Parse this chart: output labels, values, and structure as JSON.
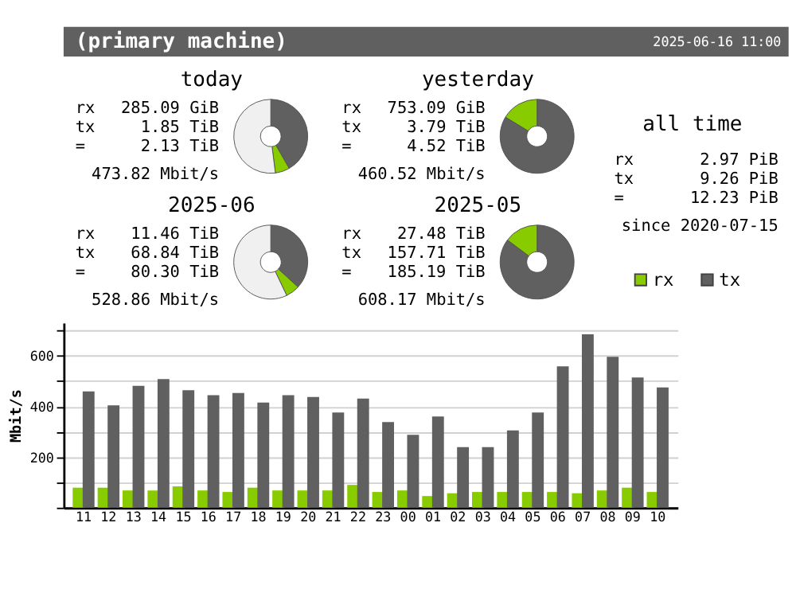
{
  "chart_data": [
    {
      "type": "other",
      "title": "(primary machine)",
      "annotations": [
        "2025-06-16 11:00"
      ]
    },
    {
      "type": "donut",
      "title": "today",
      "categories": [
        null,
        null,
        null
      ],
      "values": [
        41.7,
        6.3,
        52.0
      ],
      "colors": [
        "#606060",
        "#88cc00",
        "#f0f0f0"
      ],
      "annotations": [
        "rx",
        "285.09 GiB",
        "tx",
        "1.85 TiB",
        "=",
        "2.13 TiB",
        "473.82 Mbit/s"
      ]
    },
    {
      "type": "donut",
      "title": "yesterday",
      "categories": [
        null,
        null
      ],
      "values": [
        83.7,
        16.3
      ],
      "colors": [
        "#606060",
        "#88cc00"
      ],
      "annotations": [
        "rx",
        "753.09 GiB",
        "tx",
        "3.79 TiB",
        "=",
        "4.52 TiB",
        "460.52 Mbit/s"
      ]
    },
    {
      "type": "donut",
      "title": "2025-06",
      "categories": [
        null,
        null,
        null
      ],
      "values": [
        36.8,
        6.1,
        57.1
      ],
      "colors": [
        "#606060",
        "#88cc00",
        "#f0f0f0"
      ],
      "annotations": [
        "rx",
        "11.46 TiB",
        "tx",
        "68.84 TiB",
        "=",
        "80.30 TiB",
        "528.86 Mbit/s"
      ]
    },
    {
      "type": "donut",
      "title": "2025-05",
      "categories": [
        null,
        null
      ],
      "values": [
        85.2,
        14.8
      ],
      "colors": [
        "#606060",
        "#88cc00"
      ],
      "annotations": [
        "rx",
        "27.48 TiB",
        "tx",
        "157.71 TiB",
        "=",
        "185.19 TiB",
        "608.17 Mbit/s"
      ]
    },
    {
      "type": "other",
      "title": "all time",
      "annotations": [
        "rx",
        "2.97 PiB",
        "tx",
        "9.26 PiB",
        "=",
        "12.23 PiB",
        "since 2020-07-15"
      ]
    },
    {
      "type": "bar",
      "ylabel": "Mbit/s",
      "ylim": [
        0,
        730
      ],
      "yticks": [
        {
          "value": 0,
          "label": null
        },
        {
          "value": 100,
          "label": null
        },
        200,
        {
          "value": 300,
          "label": null
        },
        400,
        {
          "value": 500,
          "label": null
        },
        600,
        {
          "value": 700,
          "label": null
        }
      ],
      "grid": "y",
      "legend": "top right",
      "categories": [
        "11",
        "12",
        "13",
        "14",
        "15",
        "16",
        "17",
        "18",
        "19",
        "20",
        "21",
        "22",
        "23",
        "00",
        "01",
        "02",
        "03",
        "04",
        "05",
        "06",
        "07",
        "08",
        "09",
        "10"
      ],
      "series": [
        {
          "name": "rx",
          "color": "#88cc00",
          "values": [
            79,
            79,
            68,
            68,
            84,
            68,
            62,
            79,
            68,
            68,
            68,
            90,
            62,
            68,
            46,
            57,
            62,
            62,
            62,
            62,
            57,
            68,
            79,
            62
          ]
        },
        {
          "name": "tx",
          "color": "#606060",
          "values": [
            459,
            404,
            481,
            508,
            464,
            444,
            453,
            415,
            444,
            437,
            376,
            431,
            338,
            288,
            360,
            239,
            239,
            305,
            376,
            558,
            684,
            596,
            514,
            475
          ]
        }
      ]
    }
  ]
}
